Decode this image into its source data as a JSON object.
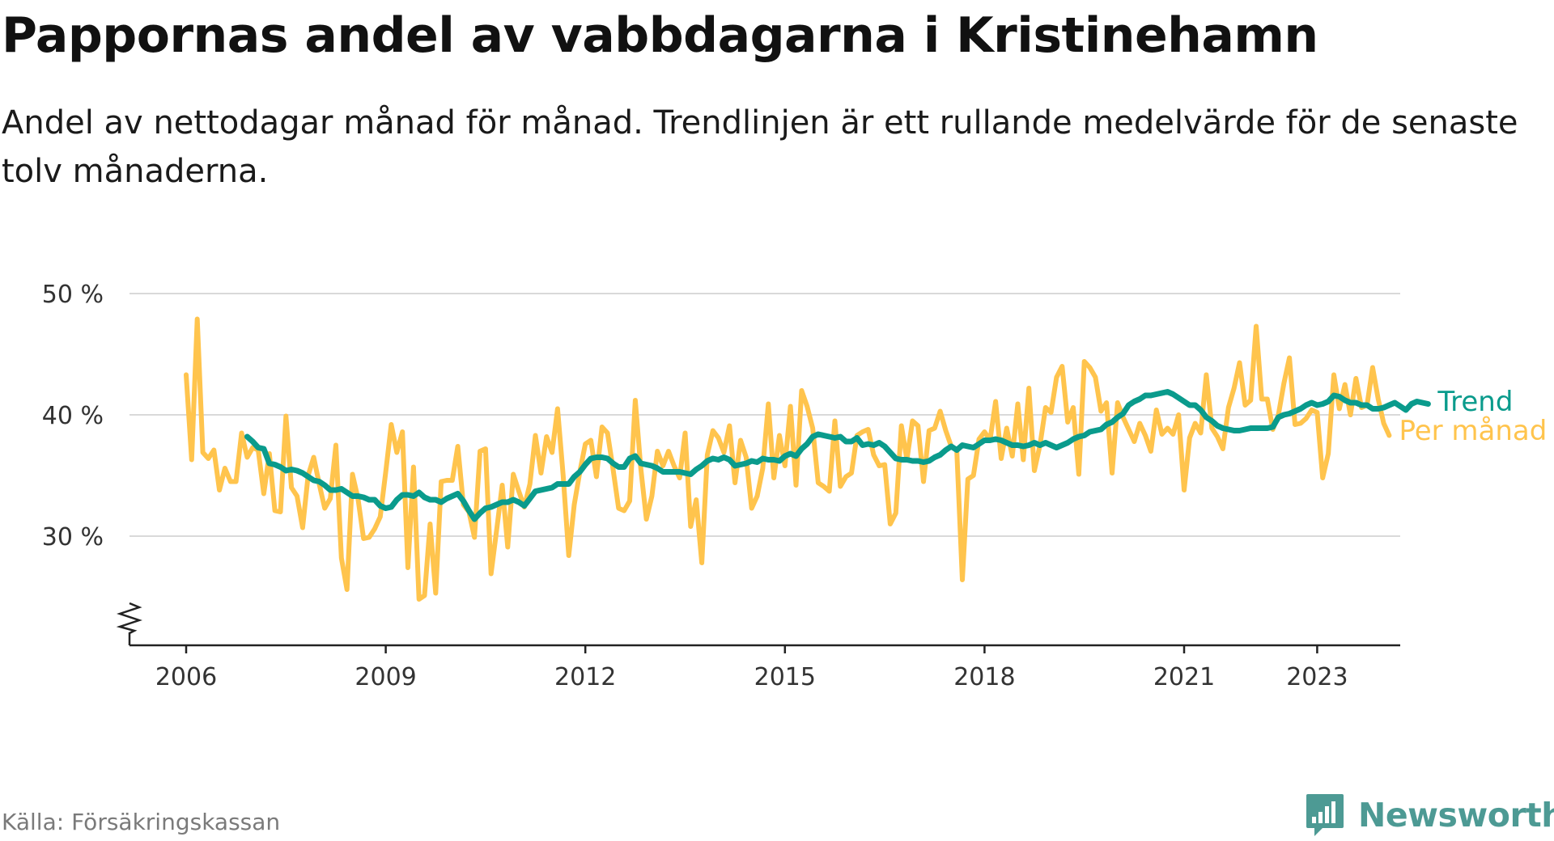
{
  "title": "Pappornas andel av vabbdagarna i Kristinehamn",
  "subtitle": "Andel av nettodagar månad för månad. Trendlinjen är ett rullande medelvärde för de senaste tolv månaderna.",
  "source": "Källa: Försäkringskassan",
  "brand": "Newsworthy",
  "colors": {
    "trend": "#0a9b8c",
    "monthly": "#ffc44d",
    "grid": "#d9d9d9",
    "axis": "#222222",
    "brand": "#4d9a94"
  },
  "icons": {
    "broken_axis": "zigzag-break-icon",
    "brand": "newsworthy-logo-icon"
  },
  "chart_data": {
    "type": "line",
    "x_ticks": [
      2006,
      2009,
      2012,
      2015,
      2018,
      2021,
      2023
    ],
    "x_tick_labels": [
      "2006",
      "2009",
      "2012",
      "2015",
      "2018",
      "2021",
      "2023"
    ],
    "y_ticks": [
      30,
      40,
      50
    ],
    "y_tick_labels": [
      "30 %",
      "40 %",
      "50 %"
    ],
    "ylim": [
      21,
      50
    ],
    "y_axis_broken": true,
    "grid": "horizontal",
    "legend": "inline labels at line ends (right)",
    "series": [
      {
        "name": "Per månad",
        "start": "2006-01",
        "values": [
          43.3,
          36.3,
          47.9,
          36.9,
          36.4,
          37.1,
          33.8,
          35.6,
          34.5,
          34.5,
          38.5,
          36.5,
          37.3,
          37.1,
          33.5,
          36.8,
          32.1,
          32.0,
          39.9,
          34.0,
          33.3,
          30.7,
          35.0,
          36.5,
          34.3,
          32.3,
          33.1,
          37.5,
          28.2,
          25.6,
          35.1,
          33.1,
          29.8,
          29.9,
          30.6,
          31.6,
          35.3,
          39.2,
          36.9,
          38.6,
          27.4,
          35.7,
          24.8,
          25.1,
          31.0,
          25.3,
          34.5,
          34.6,
          34.6,
          37.4,
          32.6,
          32.0,
          29.9,
          37.0,
          37.2,
          26.9,
          30.5,
          34.2,
          29.1,
          35.1,
          33.7,
          32.4,
          34.3,
          38.3,
          35.2,
          38.2,
          36.9,
          40.5,
          35.0,
          28.4,
          32.6,
          35.3,
          37.6,
          37.9,
          34.9,
          39.0,
          38.5,
          35.5,
          32.3,
          32.1,
          32.9,
          41.2,
          35.6,
          31.4,
          33.3,
          37.0,
          35.8,
          37.0,
          35.8,
          34.8,
          38.5,
          30.8,
          33.0,
          27.8,
          36.7,
          38.7,
          38.1,
          36.9,
          39.1,
          34.4,
          37.9,
          36.5,
          32.3,
          33.3,
          35.6,
          40.9,
          34.8,
          38.3,
          35.8,
          40.7,
          34.2,
          42.0,
          40.7,
          38.9,
          34.4,
          34.1,
          33.7,
          39.5,
          34.1,
          34.9,
          35.2,
          38.3,
          38.6,
          38.8,
          36.7,
          35.8,
          35.9,
          31.0,
          31.9,
          39.1,
          36.3,
          39.5,
          39.1,
          34.5,
          38.7,
          38.9,
          40.3,
          38.7,
          37.4,
          37.1,
          26.4,
          34.7,
          35.0,
          38.0,
          38.6,
          37.9,
          41.1,
          36.4,
          38.9,
          36.6,
          40.9,
          36.3,
          42.2,
          35.4,
          37.5,
          40.6,
          40.2,
          43.1,
          44.0,
          39.4,
          40.6,
          35.1,
          44.4,
          43.9,
          43.1,
          40.3,
          41.0,
          35.2,
          41.0,
          39.8,
          38.8,
          37.8,
          39.3,
          38.3,
          37.0,
          40.4,
          38.4,
          38.9,
          38.4,
          40.0,
          33.8,
          38.1,
          39.3,
          38.5,
          43.3,
          38.9,
          38.2,
          37.2,
          40.6,
          42.2,
          44.3,
          40.8,
          41.2,
          47.3,
          41.3,
          41.3,
          38.8,
          40.0,
          42.6,
          44.7,
          39.2,
          39.3,
          39.7,
          40.4,
          40.2,
          34.8,
          36.8,
          43.3,
          40.5,
          42.5,
          40.0,
          43.0,
          40.6,
          40.8,
          43.9,
          41.3,
          39.3,
          38.3
        ]
      },
      {
        "name": "Trend",
        "start": "2006-12",
        "values": [
          38.2,
          37.8,
          37.3,
          37.2,
          36.0,
          35.9,
          35.7,
          35.4,
          35.5,
          35.4,
          35.2,
          34.9,
          34.6,
          34.5,
          34.2,
          33.8,
          33.8,
          33.9,
          33.6,
          33.3,
          33.3,
          33.2,
          33.0,
          33.0,
          32.5,
          32.3,
          32.4,
          33.0,
          33.4,
          33.4,
          33.3,
          33.6,
          33.2,
          33.0,
          33.0,
          32.8,
          33.1,
          33.3,
          33.5,
          32.9,
          32.1,
          31.4,
          31.9,
          32.3,
          32.4,
          32.6,
          32.8,
          32.8,
          33.0,
          32.8,
          32.5,
          33.1,
          33.7,
          33.8,
          33.9,
          34.0,
          34.3,
          34.3,
          34.3,
          34.9,
          35.3,
          35.9,
          36.4,
          36.5,
          36.5,
          36.4,
          36.0,
          35.7,
          35.7,
          36.4,
          36.6,
          36.0,
          35.9,
          35.8,
          35.6,
          35.3,
          35.3,
          35.3,
          35.3,
          35.2,
          35.1,
          35.5,
          35.8,
          36.2,
          36.4,
          36.3,
          36.5,
          36.3,
          35.8,
          35.9,
          36.0,
          36.2,
          36.1,
          36.4,
          36.3,
          36.3,
          36.2,
          36.6,
          36.8,
          36.6,
          37.2,
          37.6,
          38.2,
          38.4,
          38.3,
          38.2,
          38.1,
          38.2,
          37.8,
          37.8,
          38.1,
          37.5,
          37.6,
          37.5,
          37.7,
          37.4,
          36.9,
          36.4,
          36.3,
          36.3,
          36.2,
          36.2,
          36.1,
          36.2,
          36.5,
          36.7,
          37.1,
          37.4,
          37.1,
          37.5,
          37.4,
          37.3,
          37.6,
          37.9,
          37.9,
          38.0,
          37.9,
          37.7,
          37.5,
          37.5,
          37.4,
          37.5,
          37.7,
          37.5,
          37.7,
          37.5,
          37.3,
          37.5,
          37.7,
          38.0,
          38.2,
          38.3,
          38.6,
          38.7,
          38.8,
          39.2,
          39.4,
          39.8,
          40.1,
          40.8,
          41.1,
          41.3,
          41.6,
          41.6,
          41.7,
          41.8,
          41.9,
          41.7,
          41.4,
          41.1,
          40.8,
          40.8,
          40.4,
          39.8,
          39.5,
          39.1,
          38.9,
          38.8,
          38.7,
          38.7,
          38.8,
          38.9,
          38.9,
          38.9,
          38.9,
          39.0,
          39.8,
          40.0,
          40.1,
          40.3,
          40.5,
          40.8,
          41.0,
          40.8,
          40.9,
          41.1,
          41.6,
          41.5,
          41.2,
          41.0,
          41.0,
          40.8,
          40.8,
          40.5,
          40.5,
          40.6,
          40.8,
          41.0,
          40.7,
          40.4,
          40.9,
          41.1,
          41.0,
          40.9
        ]
      }
    ]
  }
}
